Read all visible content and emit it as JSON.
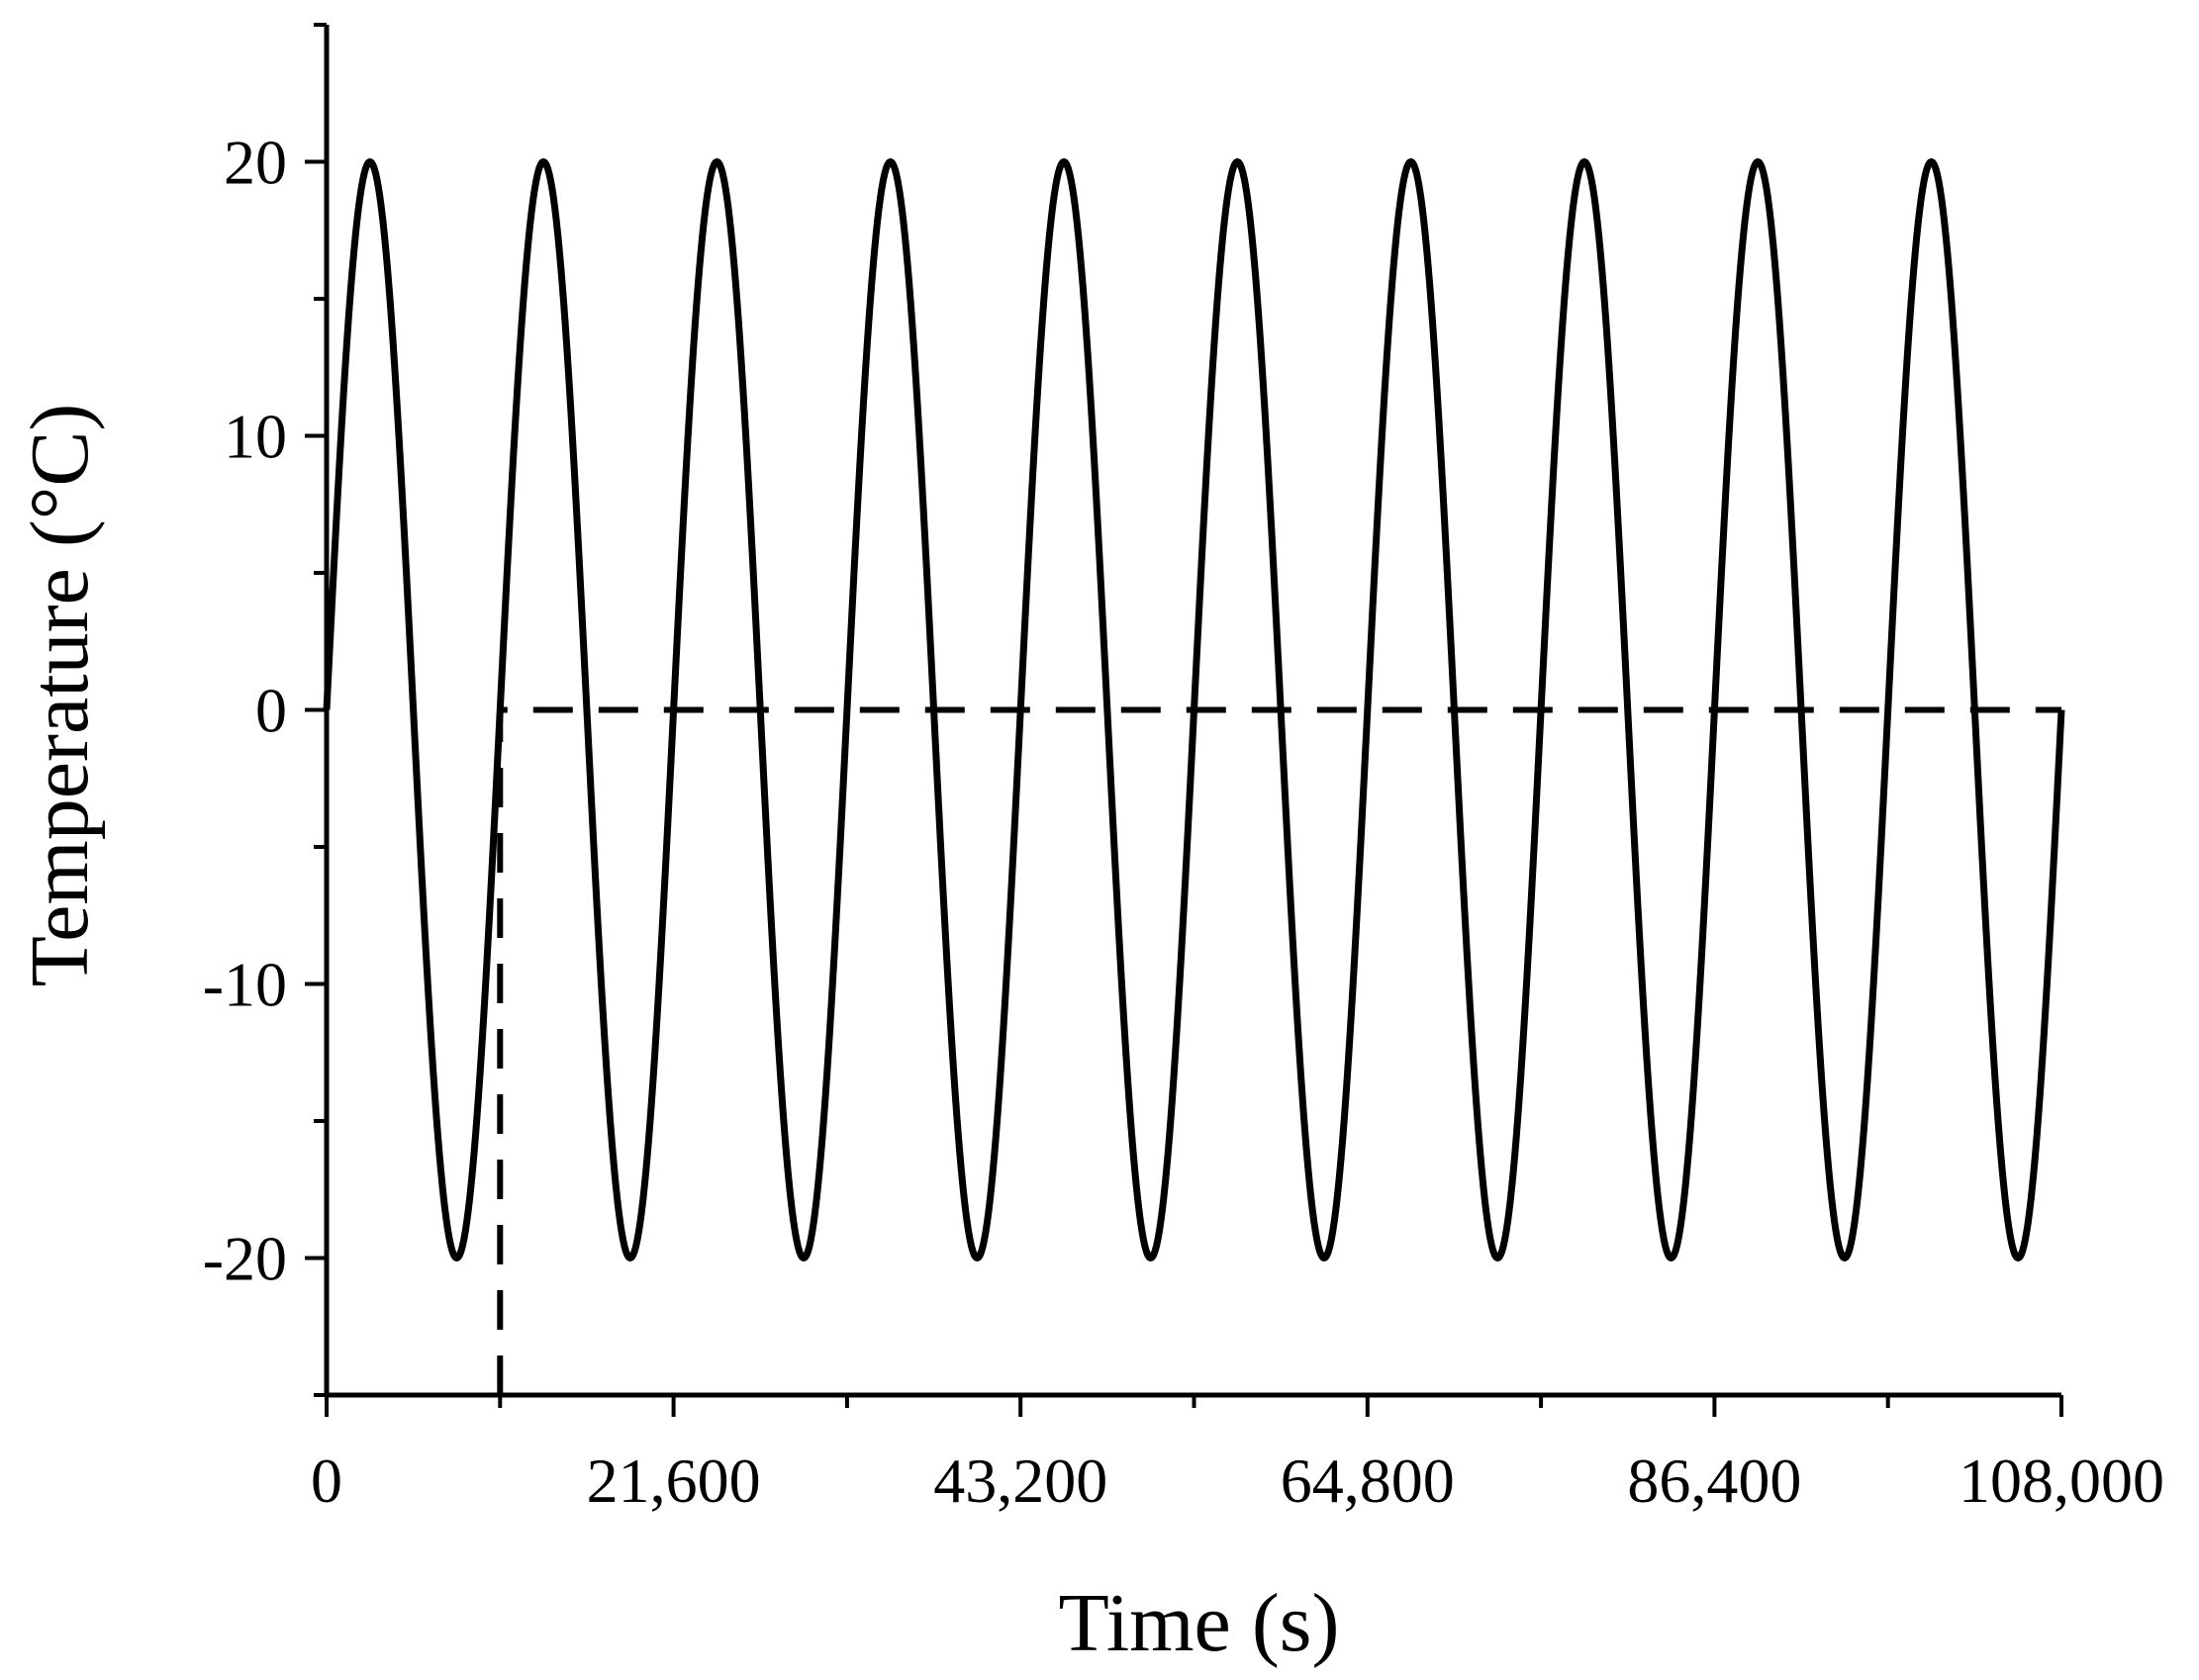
{
  "chart_data": {
    "type": "line",
    "title": "",
    "xlabel": "Time (s)",
    "ylabel": "Temperature (°C)",
    "xlim": [
      0,
      108000
    ],
    "ylim": [
      -25,
      25
    ],
    "x_ticks": [
      0,
      21600,
      43200,
      64800,
      86400,
      108000
    ],
    "x_tick_labels": [
      "0",
      "21,600",
      "43,200",
      "64,800",
      "86,400",
      "108,000"
    ],
    "x_minor_ticks": [
      10800,
      32400,
      54000,
      75600,
      97200
    ],
    "y_ticks": [
      -20,
      -10,
      0,
      10,
      20
    ],
    "y_tick_labels": [
      "-20",
      "-10",
      "0",
      "10",
      "20"
    ],
    "y_minor_ticks": [
      -25,
      -15,
      -5,
      5,
      15,
      25
    ],
    "grid": false,
    "legend": "none",
    "series": [
      {
        "style": "solid",
        "color": "#000000",
        "function": "sine",
        "amplitude": 20,
        "period": 10800,
        "x_range": [
          0,
          108000
        ]
      },
      {
        "style": "dashed",
        "color": "#000000",
        "x": [
          10800,
          10800,
          108000
        ],
        "y": [
          -25,
          0,
          0
        ]
      }
    ]
  }
}
